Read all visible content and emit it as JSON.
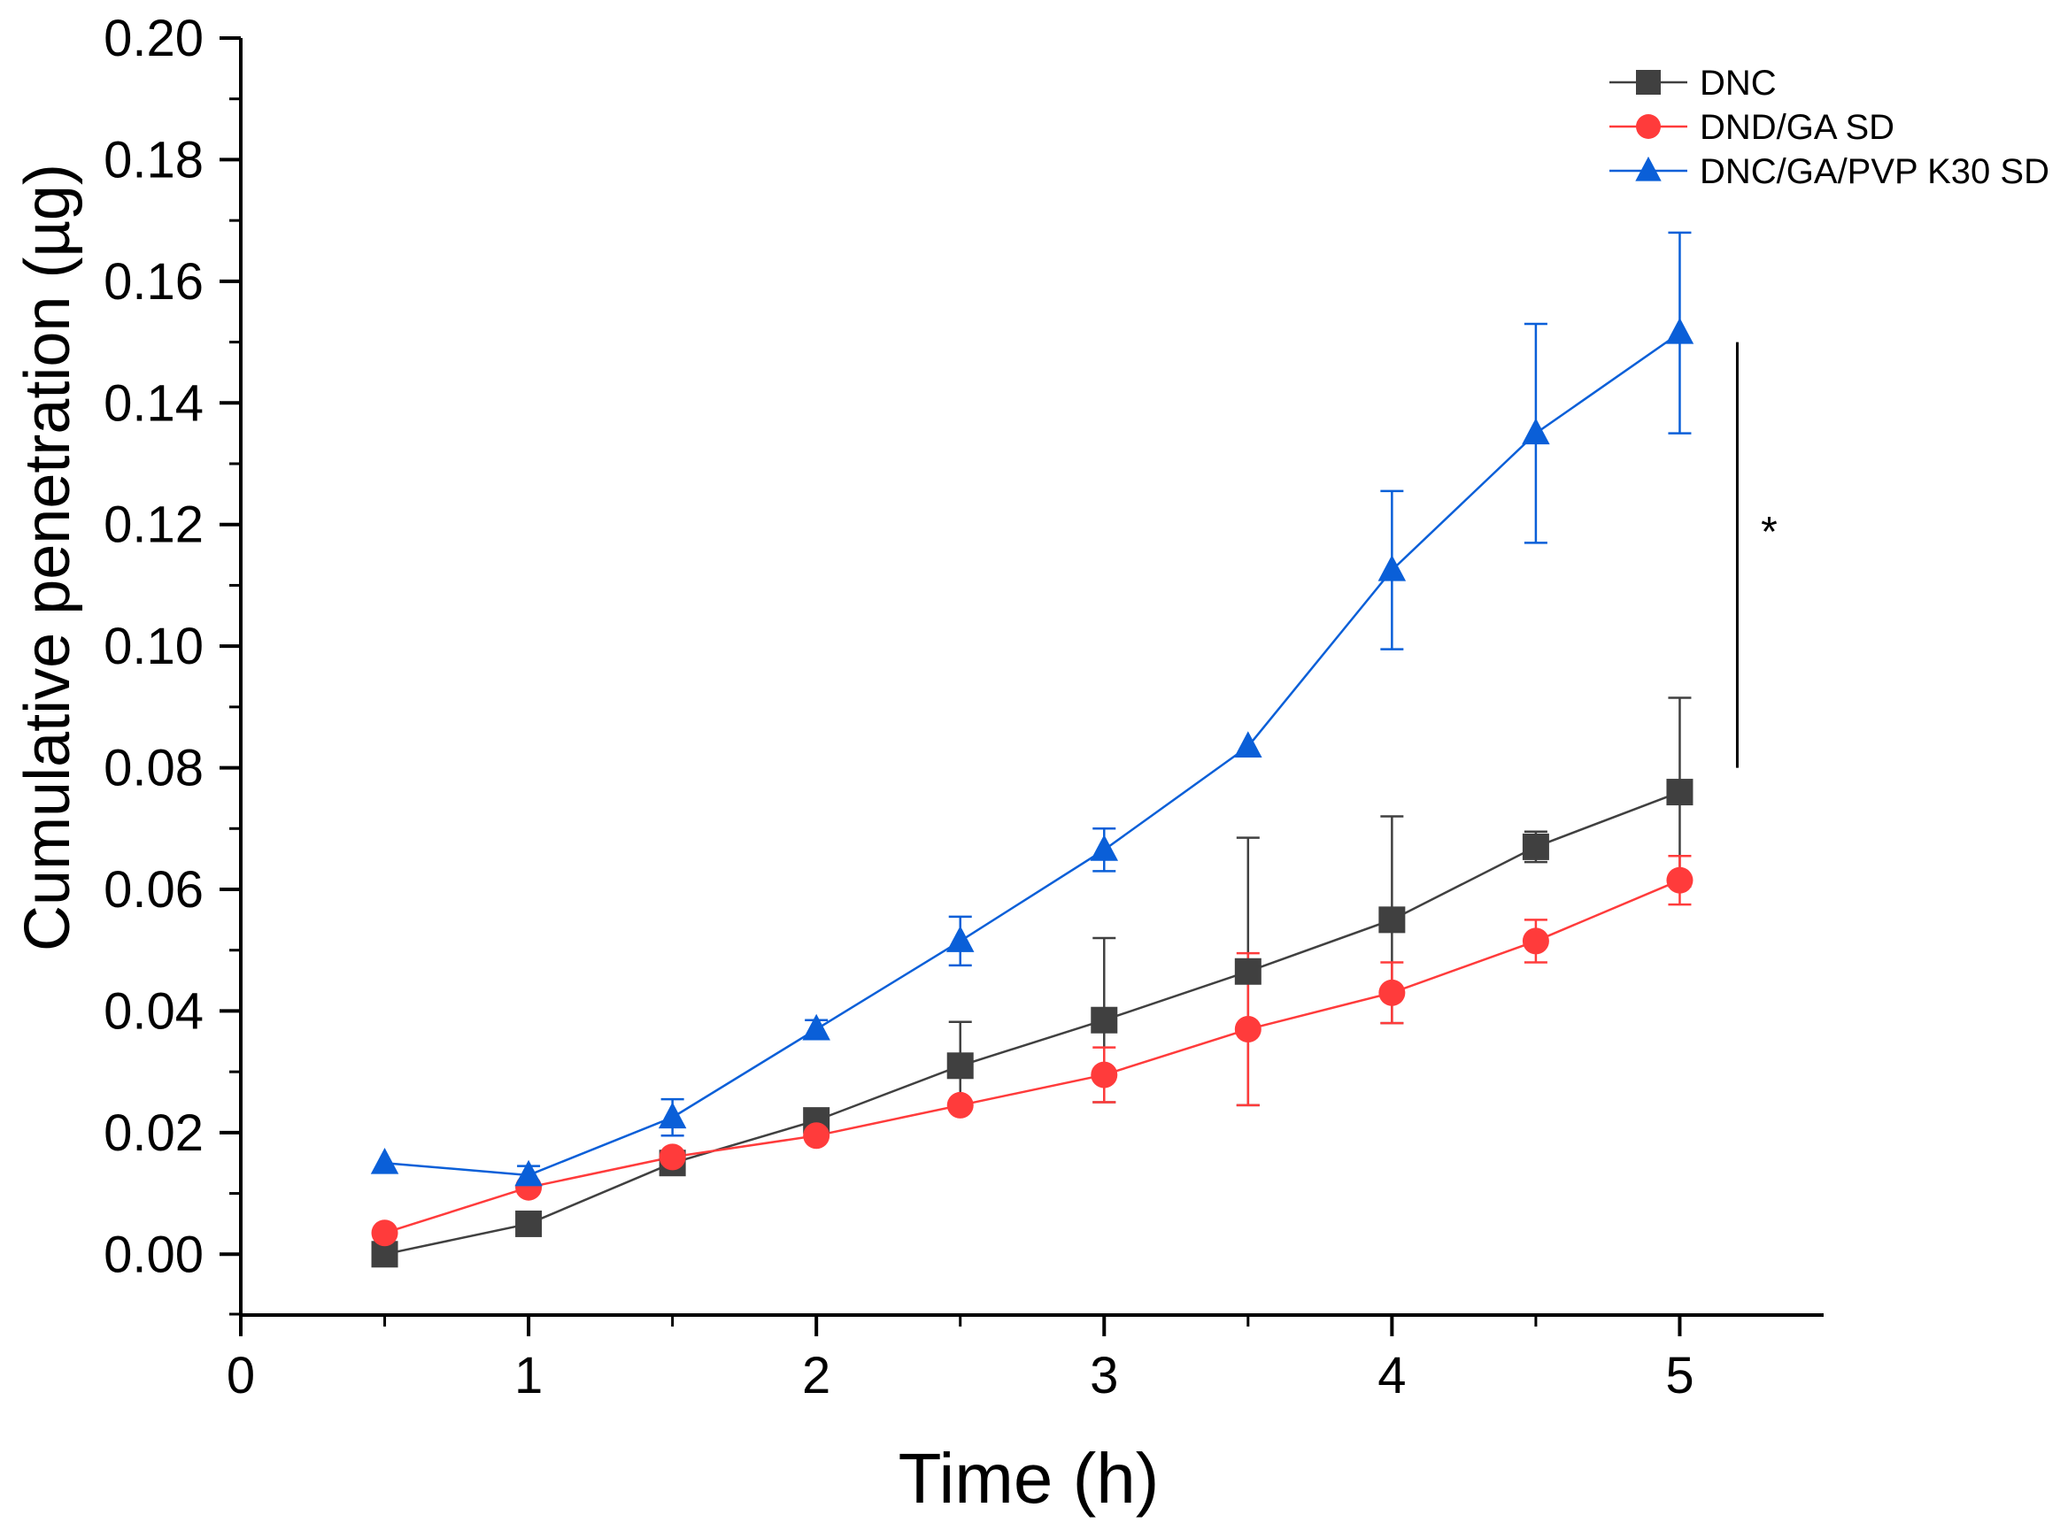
{
  "chart_data": {
    "type": "line",
    "title": "",
    "xlabel": "Time (h)",
    "ylabel": "Cumulative penetration (µg)",
    "xlim": [
      0,
      5.5
    ],
    "ylim": [
      -0.01,
      0.2
    ],
    "x_ticks": [
      0,
      1,
      2,
      3,
      4,
      5
    ],
    "x_tick_labels": [
      "0",
      "1",
      "2",
      "3",
      "4",
      "5"
    ],
    "y_ticks": [
      0.0,
      0.02,
      0.04,
      0.06,
      0.08,
      0.1,
      0.12,
      0.14,
      0.16,
      0.18,
      0.2
    ],
    "y_tick_labels": [
      "0.00",
      "0.02",
      "0.04",
      "0.06",
      "0.08",
      "0.10",
      "0.12",
      "0.14",
      "0.16",
      "0.18",
      "0.20"
    ],
    "grid": false,
    "legend_position": "top-right",
    "x": [
      0.5,
      1,
      1.5,
      2,
      2.5,
      3,
      3.5,
      4,
      4.5,
      5
    ],
    "series": [
      {
        "name": "DNC",
        "marker": "square",
        "color": "#404040",
        "values": [
          0.0,
          0.005,
          0.015,
          0.022,
          0.031,
          0.0385,
          0.0465,
          0.055,
          0.067,
          0.076
        ],
        "error": [
          0,
          0,
          0,
          0,
          0.0072,
          0.0135,
          0.022,
          0.017,
          0.0025,
          0.0155
        ]
      },
      {
        "name": "DND/GA SD",
        "marker": "circle",
        "color": "#ff3b3b",
        "values": [
          0.0035,
          0.011,
          0.016,
          0.0195,
          0.0245,
          0.0295,
          0.037,
          0.043,
          0.0515,
          0.0615
        ],
        "error": [
          0,
          0,
          0,
          0,
          0,
          0.0045,
          0.0125,
          0.005,
          0.0035,
          0.004
        ]
      },
      {
        "name": "DNC/GA/PVP K30 SD",
        "marker": "triangle",
        "color": "#0a5fd8",
        "values": [
          0.015,
          0.013,
          0.0225,
          0.037,
          0.0515,
          0.0665,
          0.0835,
          0.1125,
          0.135,
          0.1515
        ],
        "error": [
          0,
          0.0015,
          0.003,
          0.0015,
          0.004,
          0.0035,
          0,
          0.013,
          0.018,
          0.0165
        ]
      }
    ],
    "annotations": [
      {
        "text": "*",
        "type": "significance",
        "x": 5.2,
        "y_range": [
          0.08,
          0.15
        ]
      }
    ]
  }
}
